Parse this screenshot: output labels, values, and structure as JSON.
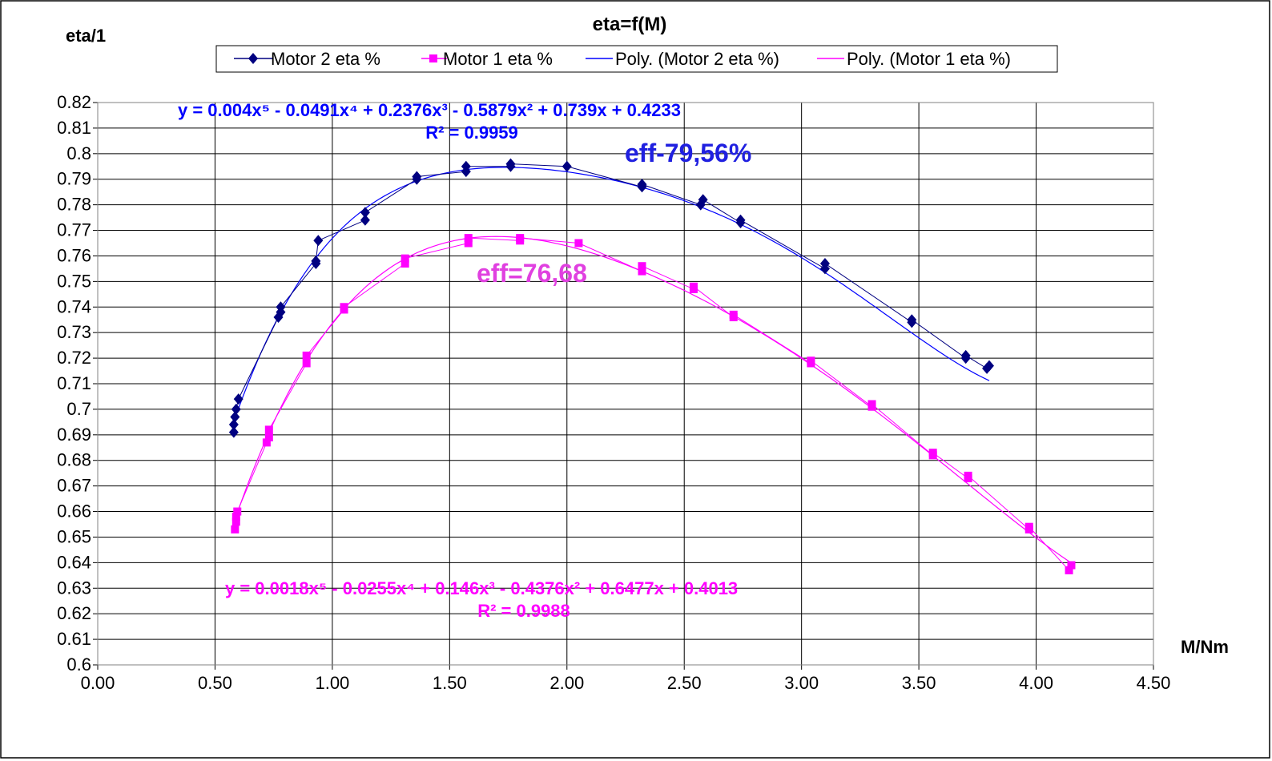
{
  "chart_data": {
    "type": "scatter",
    "title": "eta=f(M)",
    "ylabel": "eta/1",
    "xlabel": "M/Nm",
    "xlim": [
      0,
      4.5
    ],
    "ylim": [
      0.6,
      0.82
    ],
    "x_ticks": [
      "0.00",
      "0.50",
      "1.00",
      "1.50",
      "2.00",
      "2.50",
      "3.00",
      "3.50",
      "4.00",
      "4.50"
    ],
    "y_ticks": [
      "0.6",
      "0.61",
      "0.62",
      "0.63",
      "0.64",
      "0.65",
      "0.66",
      "0.67",
      "0.68",
      "0.69",
      "0.7",
      "0.71",
      "0.72",
      "0.73",
      "0.74",
      "0.75",
      "0.76",
      "0.77",
      "0.78",
      "0.79",
      "0.8",
      "0.81",
      "0.82"
    ],
    "grid": true,
    "legend_position": "top",
    "legend": [
      "Motor 2 eta %",
      "Motor 1 eta %",
      "Poly. (Motor 2 eta %)",
      "Poly. (Motor 1 eta %)"
    ],
    "series": [
      {
        "name": "Motor 2 eta %",
        "color": "#000080",
        "marker": "diamond",
        "points": [
          [
            0.58,
            0.691
          ],
          [
            0.58,
            0.694
          ],
          [
            0.585,
            0.697
          ],
          [
            0.59,
            0.7
          ],
          [
            0.6,
            0.704
          ],
          [
            0.77,
            0.736
          ],
          [
            0.78,
            0.738
          ],
          [
            0.78,
            0.74
          ],
          [
            0.93,
            0.757
          ],
          [
            0.93,
            0.758
          ],
          [
            0.94,
            0.766
          ],
          [
            1.14,
            0.774
          ],
          [
            1.14,
            0.777
          ],
          [
            1.36,
            0.79
          ],
          [
            1.36,
            0.791
          ],
          [
            1.57,
            0.793
          ],
          [
            1.57,
            0.795
          ],
          [
            1.76,
            0.795
          ],
          [
            1.76,
            0.796
          ],
          [
            2.0,
            0.795
          ],
          [
            2.32,
            0.787
          ],
          [
            2.32,
            0.788
          ],
          [
            2.57,
            0.78
          ],
          [
            2.58,
            0.782
          ],
          [
            2.74,
            0.773
          ],
          [
            2.74,
            0.774
          ],
          [
            3.1,
            0.755
          ],
          [
            3.1,
            0.757
          ],
          [
            3.47,
            0.734
          ],
          [
            3.47,
            0.735
          ],
          [
            3.7,
            0.72
          ],
          [
            3.7,
            0.721
          ],
          [
            3.79,
            0.716
          ],
          [
            3.8,
            0.717
          ]
        ]
      },
      {
        "name": "Motor 1 eta %",
        "color": "#FF00FF",
        "marker": "square",
        "points": [
          [
            0.585,
            0.653
          ],
          [
            0.59,
            0.656
          ],
          [
            0.59,
            0.658
          ],
          [
            0.595,
            0.66
          ],
          [
            0.72,
            0.687
          ],
          [
            0.73,
            0.689
          ],
          [
            0.73,
            0.692
          ],
          [
            0.89,
            0.718
          ],
          [
            0.89,
            0.721
          ],
          [
            1.05,
            0.739
          ],
          [
            1.05,
            0.74
          ],
          [
            1.31,
            0.757
          ],
          [
            1.31,
            0.759
          ],
          [
            1.58,
            0.765
          ],
          [
            1.58,
            0.767
          ],
          [
            1.8,
            0.766
          ],
          [
            1.8,
            0.767
          ],
          [
            2.05,
            0.765
          ],
          [
            2.32,
            0.754
          ],
          [
            2.32,
            0.756
          ],
          [
            2.54,
            0.747
          ],
          [
            2.54,
            0.748
          ],
          [
            2.71,
            0.736
          ],
          [
            2.71,
            0.737
          ],
          [
            3.04,
            0.718
          ],
          [
            3.04,
            0.719
          ],
          [
            3.3,
            0.701
          ],
          [
            3.3,
            0.702
          ],
          [
            3.56,
            0.682
          ],
          [
            3.56,
            0.683
          ],
          [
            3.71,
            0.673
          ],
          [
            3.71,
            0.674
          ],
          [
            3.97,
            0.653
          ],
          [
            3.97,
            0.654
          ],
          [
            4.14,
            0.637
          ],
          [
            4.15,
            0.639
          ]
        ]
      }
    ],
    "trendlines": [
      {
        "name": "Poly. (Motor 2 eta %)",
        "color": "#0000FF",
        "equation": "y = 0.004x⁵  - 0.0491x⁴  + 0.2376x³  - 0.5879x²  + 0.739x + 0.4233",
        "r2": "R² = 0.9959",
        "coefficients": [
          0.4233,
          0.739,
          -0.5879,
          0.2376,
          -0.0491,
          0.004
        ],
        "x_range": [
          0.58,
          3.8
        ]
      },
      {
        "name": "Poly. (Motor 1 eta %)",
        "color": "#FF00FF",
        "equation": "y = 0.0018x⁵  - 0.0255x⁴  + 0.146x³  - 0.4376x²  + 0.6477x + 0.4013",
        "r2": "R² = 0.9988",
        "coefficients": [
          0.4013,
          0.6477,
          -0.4376,
          0.146,
          -0.0255,
          0.0018
        ],
        "x_range": [
          0.585,
          4.15
        ]
      }
    ],
    "annotations": [
      {
        "text": "eff-79,56%",
        "color": "#2020E0"
      },
      {
        "text": "eff=76,68",
        "color": "#E040E0"
      }
    ]
  }
}
